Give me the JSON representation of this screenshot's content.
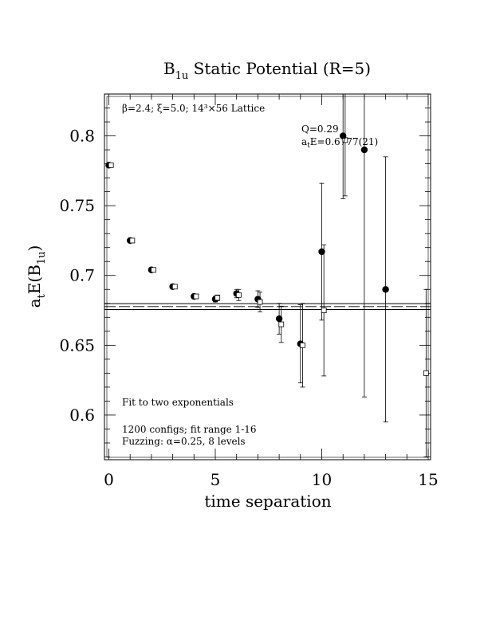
{
  "chart_data": {
    "type": "scatter",
    "title": "B",
    "title_sub": "1u",
    "title_rest": " Static Potential (R=5)",
    "xlabel": "time separation",
    "ylabel": {
      "pre": "a",
      "pre_sub": "t",
      "mid": "E(B",
      "mid_sub": "1u",
      "post": ")"
    },
    "xlim": [
      0,
      15
    ],
    "ylim": [
      0.568,
      0.83
    ],
    "x_ticks": [
      "0",
      "5",
      "10",
      "15"
    ],
    "y_ticks": [
      "0.6",
      "0.65",
      "0.7",
      "0.75",
      "0.8"
    ],
    "annotations": {
      "lattice": "β=2.4; ξ=5.0; 14³×56 Lattice",
      "q": "Q=0.29",
      "fit_value": {
        "pre": "a",
        "sub": "t",
        "post": "E=0.6777(21)"
      },
      "fit_desc": "Fit to two exponentials",
      "configs": "1200 configs; fit range 1-16",
      "fuzzing": "Fuzzing: α=0.25, 8 levels"
    },
    "fit": {
      "value": 0.6777,
      "error": 0.0021
    },
    "series": [
      {
        "marker": "filled-circle",
        "points": [
          {
            "x": 0,
            "y": 0.779,
            "err": 0.001
          },
          {
            "x": 1,
            "y": 0.725,
            "err": 0.001
          },
          {
            "x": 2,
            "y": 0.704,
            "err": 0.001
          },
          {
            "x": 3,
            "y": 0.692,
            "err": 0.001
          },
          {
            "x": 4,
            "y": 0.685,
            "err": 0.001
          },
          {
            "x": 5,
            "y": 0.683,
            "err": 0.002
          },
          {
            "x": 6,
            "y": 0.687,
            "err": 0.003
          },
          {
            "x": 7,
            "y": 0.683,
            "err": 0.006
          },
          {
            "x": 8,
            "y": 0.669,
            "err": 0.011
          },
          {
            "x": 9,
            "y": 0.651,
            "err": 0.028
          },
          {
            "x": 10,
            "y": 0.717,
            "err": 0.049
          },
          {
            "x": 11,
            "y": 0.8,
            "err": 0.045
          },
          {
            "x": 12,
            "y": 0.79,
            "err": 0.177
          },
          {
            "x": 13,
            "y": 0.69,
            "err": 0.095
          }
        ]
      },
      {
        "marker": "open-square",
        "points": [
          {
            "x": 0.1,
            "y": 0.779,
            "err": 0.001
          },
          {
            "x": 1.1,
            "y": 0.725,
            "err": 0.001
          },
          {
            "x": 2.1,
            "y": 0.704,
            "err": 0.001
          },
          {
            "x": 3.1,
            "y": 0.692,
            "err": 0.001
          },
          {
            "x": 4.1,
            "y": 0.685,
            "err": 0.001
          },
          {
            "x": 5.1,
            "y": 0.684,
            "err": 0.002
          },
          {
            "x": 6.1,
            "y": 0.686,
            "err": 0.004
          },
          {
            "x": 7.1,
            "y": 0.681,
            "err": 0.007
          },
          {
            "x": 8.1,
            "y": 0.665,
            "err": 0.013
          },
          {
            "x": 9.1,
            "y": 0.65,
            "err": 0.03
          },
          {
            "x": 10.1,
            "y": 0.675,
            "err": 0.047
          },
          {
            "x": 11.1,
            "y": 0.797,
            "err": 0.04
          },
          {
            "x": 14.9,
            "y": 0.63,
            "err": 0.06
          }
        ]
      }
    ]
  }
}
